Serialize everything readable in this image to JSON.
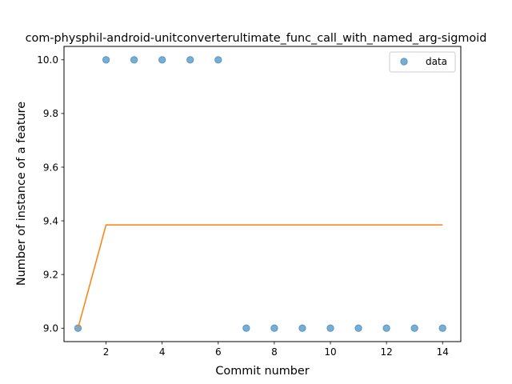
{
  "chart_data": {
    "type": "scatter",
    "title": "com-physphil-android-unitconverterultimate_func_call_with_named_arg-sigmoid",
    "xlabel": "Commit number",
    "ylabel": "Number of instance of a feature",
    "xlim": [
      0.5,
      14.65
    ],
    "ylim": [
      8.95,
      10.05
    ],
    "xticks": [
      2,
      4,
      6,
      8,
      10,
      12,
      14
    ],
    "yticks": [
      9.0,
      9.2,
      9.4,
      9.6,
      9.8,
      10.0
    ],
    "ytick_labels": [
      "9.0",
      "9.2",
      "9.4",
      "9.6",
      "9.8",
      "10.0"
    ],
    "grid": false,
    "legend_position": "top-right",
    "series": [
      {
        "name": "data",
        "kind": "scatter",
        "color": "#1f77b4",
        "x": [
          1,
          2,
          3,
          4,
          5,
          6,
          7,
          8,
          9,
          10,
          11,
          12,
          13,
          14
        ],
        "y": [
          9,
          10,
          10,
          10,
          10,
          10,
          9,
          9,
          9,
          9,
          9,
          9,
          9,
          9
        ]
      },
      {
        "kind": "line",
        "color": "#ff7f0e",
        "x": [
          1,
          2,
          3,
          4,
          5,
          6,
          7,
          8,
          9,
          10,
          11,
          12,
          13,
          14
        ],
        "y": [
          9.0,
          9.385,
          9.385,
          9.385,
          9.385,
          9.385,
          9.385,
          9.385,
          9.385,
          9.385,
          9.385,
          9.385,
          9.385,
          9.385
        ]
      }
    ]
  }
}
